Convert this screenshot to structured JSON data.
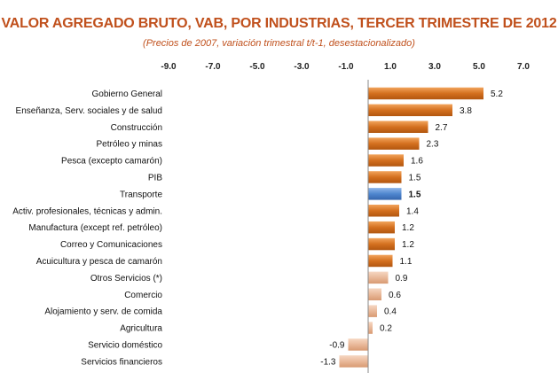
{
  "chart_data": {
    "type": "bar",
    "orientation": "horizontal",
    "title": "VALOR AGREGADO BRUTO, VAB, POR INDUSTRIAS, TERCER TRIMESTRE DE 2012",
    "subtitle": "(Precios de 2007, variación trimestral t/t-1, desestacionalizado)",
    "xlim": [
      -9.0,
      7.0
    ],
    "ticks": [
      "-9.0",
      "-7.0",
      "-5.0",
      "-3.0",
      "-1.0",
      "1.0",
      "3.0",
      "5.0",
      "7.0"
    ],
    "tick_values": [
      -9,
      -7,
      -5,
      -3,
      -1,
      1,
      3,
      5,
      7
    ],
    "grid": false,
    "colors": {
      "default": "#d4701f",
      "highlight": "#4f86cf",
      "negative": "#e9b99a",
      "title": "#c0501c"
    },
    "categories": [
      "Gobierno General",
      "Enseñanza, Serv. sociales y de salud",
      "Construcción",
      "Petróleo y minas",
      "Pesca (excepto camarón)",
      "PIB",
      "Transporte",
      "Activ. profesionales, técnicas y admin.",
      "Manufactura (except ref. petróleo)",
      "Correo y Comunicaciones",
      "Acuicultura y pesca de camarón",
      "Otros Servicios (*)",
      "Comercio",
      "Alojamiento y serv. de comida",
      "Agricultura",
      "Servicio doméstico",
      "Servicios financieros"
    ],
    "values": [
      5.2,
      3.8,
      2.7,
      2.3,
      1.6,
      1.5,
      1.5,
      1.4,
      1.2,
      1.2,
      1.1,
      0.9,
      0.6,
      0.4,
      0.2,
      -0.9,
      -1.3
    ],
    "value_labels": [
      "5.2",
      "3.8",
      "2.7",
      "2.3",
      "1.6",
      "1.5",
      "1.5",
      "1.4",
      "1.2",
      "1.2",
      "1.1",
      "0.9",
      "0.6",
      "0.4",
      "0.2",
      "-0.9",
      "-1.3"
    ],
    "highlight_index": 6
  }
}
